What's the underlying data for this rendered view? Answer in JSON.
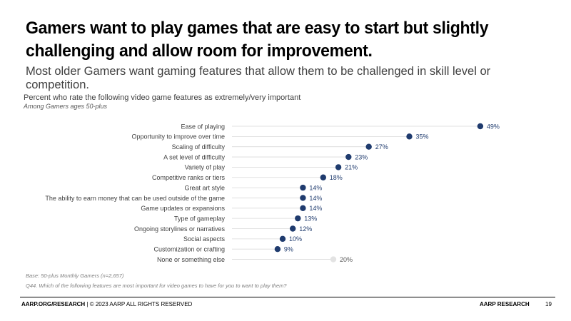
{
  "slide": {
    "headline": "Gamers want to play games that are easy to start but slightly challenging and allow room for improvement.",
    "subhead": "Most older Gamers want gaming features that allow them to be challenged in skill level or competition.",
    "caption": "Percent who rate the following video game features as extremely/very important",
    "caption_sub": "Among Gamers ages 50-plus",
    "base_note": "Base: 50-plus Monthly Gamers (n=2,657)",
    "question_note": "Q44. Which of the following features are most important for video games to have for you to want to play them?",
    "footer_left_bold": "AARP.ORG/RESEARCH",
    "footer_left_rest": " | © 2023 AARP ALL RIGHTS RESERVED",
    "footer_right": "AARP RESEARCH",
    "page_number": "19"
  },
  "colors": {
    "dot": "#1f3b6e",
    "dot_muted": "#e3e3e3",
    "value_text": "#1f3b6e",
    "value_text_muted": "#595959",
    "track": "#d9d9d9"
  },
  "chart_data": {
    "type": "dot",
    "title": "Percent who rate the following video game features as extremely/very important",
    "subtitle": "Among Gamers ages 50-plus",
    "xlim": [
      0,
      50
    ],
    "unit": "%",
    "categories": [
      "Ease of playing",
      "Opportunity to improve over time",
      "Scaling of difficulty",
      "A set level of difficulty",
      "Variety of play",
      "Competitive ranks or tiers",
      "Great art style",
      "The ability to earn money that can be used outside of the game",
      "Game updates or expansions",
      "Type of gameplay",
      "Ongoing storylines or narratives",
      "Social aspects",
      "Customization or crafting",
      "None or something else"
    ],
    "values": [
      49,
      35,
      27,
      23,
      21,
      18,
      14,
      14,
      14,
      13,
      12,
      10,
      9,
      20
    ],
    "muted": [
      false,
      false,
      false,
      false,
      false,
      false,
      false,
      false,
      false,
      false,
      false,
      false,
      false,
      true
    ]
  }
}
